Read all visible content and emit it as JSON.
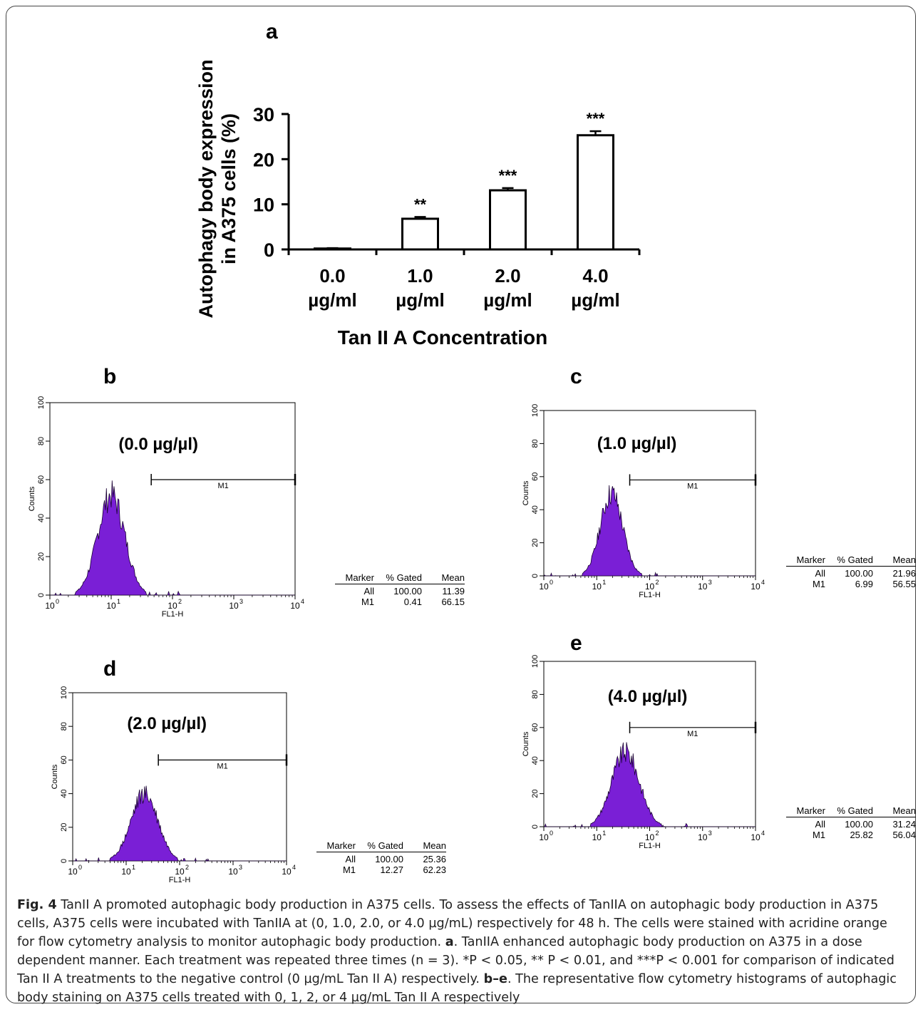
{
  "panels": {
    "a": "a",
    "b": "b",
    "c": "c",
    "d": "d",
    "e": "e"
  },
  "chart_data": [
    {
      "type": "bar",
      "panel": "a",
      "categories": [
        "0.0 µg/ml",
        "1.0 µg/ml",
        "2.0 µg/ml",
        "4.0 µg/ml"
      ],
      "category_lines": [
        [
          "0.0",
          "µg/ml"
        ],
        [
          "1.0",
          "µg/ml"
        ],
        [
          "2.0",
          "µg/ml"
        ],
        [
          "4.0",
          "µg/ml"
        ]
      ],
      "values": [
        0.2,
        6.8,
        13.1,
        25.3
      ],
      "errors": [
        0.1,
        0.4,
        0.5,
        0.9
      ],
      "significance": [
        "",
        "**",
        "***",
        "***"
      ],
      "ylabel": [
        "Autophagy body expression",
        "in A375 cells (%)"
      ],
      "xlabel": "Tan II A Concentration",
      "ylim": [
        0,
        30
      ],
      "yticks": [
        "0",
        "10",
        "20",
        "30"
      ]
    },
    {
      "type": "area",
      "panel": "b",
      "annotation": "(0.0 µg/µl)",
      "xlabel": "FL1-H",
      "ylabel": "Counts",
      "xscale": "log",
      "xlim": [
        1,
        10000
      ],
      "ylim": [
        0,
        100
      ],
      "yticks": [
        "0",
        "20",
        "40",
        "60",
        "80",
        "100"
      ],
      "marker": {
        "label": "M1",
        "from": 45,
        "to": 10000,
        "level": 60
      },
      "peak": {
        "center": 10,
        "height": 52,
        "width": 0.22
      },
      "table": {
        "headers": [
          "Marker",
          "% Gated",
          "Mean"
        ],
        "rows": [
          [
            "All",
            "100.00",
            "11.39"
          ],
          [
            "M1",
            "0.41",
            "66.15"
          ]
        ]
      }
    },
    {
      "type": "area",
      "panel": "c",
      "annotation": "(1.0 µg/µl)",
      "xlabel": "FL1-H",
      "ylabel": "Counts",
      "xscale": "log",
      "xlim": [
        1,
        10000
      ],
      "ylim": [
        0,
        100
      ],
      "yticks": [
        "0",
        "20",
        "40",
        "60",
        "80",
        "100"
      ],
      "marker": {
        "label": "M1",
        "from": 42,
        "to": 10000,
        "level": 58
      },
      "peak": {
        "center": 19,
        "height": 50,
        "width": 0.21
      },
      "table": {
        "headers": [
          "Marker",
          "% Gated",
          "Mean"
        ],
        "rows": [
          [
            "All",
            "100.00",
            "21.96"
          ],
          [
            "M1",
            "6.99",
            "56.55"
          ]
        ]
      }
    },
    {
      "type": "area",
      "panel": "d",
      "annotation": "(2.0 µg/µl)",
      "xlabel": "FL1-H",
      "ylabel": "Counts",
      "xscale": "log",
      "xlim": [
        1,
        10000
      ],
      "ylim": [
        0,
        100
      ],
      "yticks": [
        "0",
        "20",
        "40",
        "60",
        "80",
        "100"
      ],
      "marker": {
        "label": "M1",
        "from": 40,
        "to": 10000,
        "level": 60
      },
      "peak": {
        "center": 22,
        "height": 40,
        "width": 0.25
      },
      "table": {
        "headers": [
          "Marker",
          "% Gated",
          "Mean"
        ],
        "rows": [
          [
            "All",
            "100.00",
            "25.36"
          ],
          [
            "M1",
            "12.27",
            "62.23"
          ]
        ]
      }
    },
    {
      "type": "area",
      "panel": "e",
      "annotation": "(4.0 µg/µl)",
      "xlabel": "FL1-H",
      "ylabel": "Counts",
      "xscale": "log",
      "xlim": [
        1,
        10000
      ],
      "ylim": [
        0,
        100
      ],
      "yticks": [
        "0",
        "20",
        "40",
        "60",
        "80",
        "100"
      ],
      "marker": {
        "label": "M1",
        "from": 42,
        "to": 10000,
        "level": 60
      },
      "peak": {
        "center": 35,
        "height": 45,
        "width": 0.26
      },
      "table": {
        "headers": [
          "Marker",
          "% Gated",
          "Mean"
        ],
        "rows": [
          [
            "All",
            "100.00",
            "31.24"
          ],
          [
            "M1",
            "25.82",
            "56.04"
          ]
        ]
      }
    }
  ],
  "caption": {
    "fig_label": "Fig. 4",
    "part1": " TanII A promoted autophagic body production in A375 cells. To assess the effects of TanIIA on autophagic body production in A375 cells, A375 cells were incubated with TanIIA at (0, 1.0, 2.0, or 4.0 µg/mL) respectively for 48 h. The cells were stained with acridine orange for flow cytometry analysis to monitor autophagic body production. ",
    "bold_a": "a",
    "part2": ". TanIIA enhanced autophagic body production on A375 in a dose dependent manner. Each treatment was repeated three times (n = 3). *P < 0.05, ** P < 0.01, and ***P < 0.001 for comparison of indicated Tan II A treatments to the negative control (0 µg/mL Tan II A) respectively. ",
    "bold_be": "b–e",
    "part3": ". The representative flow cytometry histograms of autophagic body staining on A375 cells treated with 0, 1, 2, or 4 µg/mL Tan II A respectively"
  }
}
